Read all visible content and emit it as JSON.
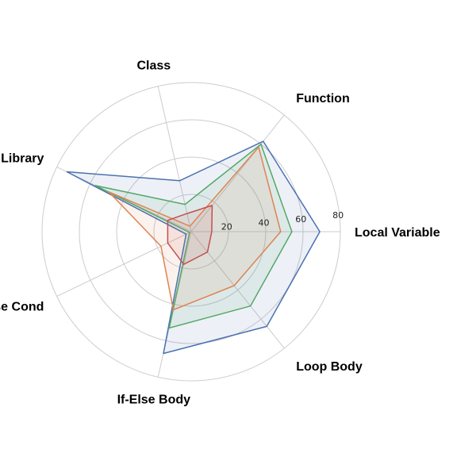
{
  "chart_data": {
    "type": "radar",
    "axes": [
      "Local Variable",
      "Function",
      "Class",
      "Library",
      "If-Else Cond",
      "If-Else Body",
      "Loop Body"
    ],
    "rlim": [
      0,
      80
    ],
    "rticks": [
      20,
      40,
      60,
      80
    ],
    "grid": true,
    "series": [
      {
        "color": "#4c72b0",
        "values": [
          69,
          62,
          28,
          74,
          3,
          67,
          65
        ]
      },
      {
        "color": "#55a868",
        "values": [
          54,
          60,
          15,
          57,
          1,
          53,
          51
        ]
      },
      {
        "color": "#dd8452",
        "values": [
          48,
          58,
          3,
          49,
          18,
          43,
          37
        ]
      },
      {
        "color": "#c44e52",
        "values": [
          11,
          18,
          10,
          14,
          14,
          18,
          14
        ]
      }
    ]
  }
}
